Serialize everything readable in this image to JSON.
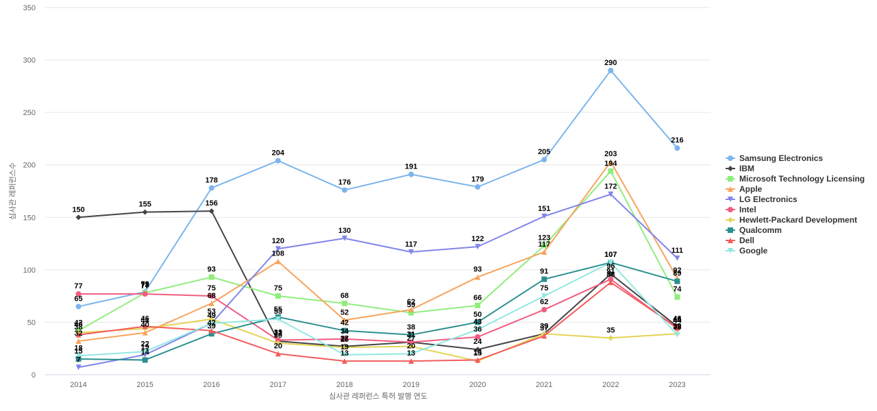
{
  "chart_data": {
    "type": "line",
    "x_label": "심사관 레퍼런스 특허 발행 연도",
    "y_label": "심사관 레퍼런스수",
    "categories": [
      "2014",
      "2015",
      "2016",
      "2017",
      "2018",
      "2019",
      "2020",
      "2021",
      "2022",
      "2023"
    ],
    "ylim": [
      0,
      350
    ],
    "yticks": [
      0,
      50,
      100,
      150,
      200,
      250,
      300,
      350
    ],
    "grid": true,
    "legend": "right",
    "series": [
      {
        "name": "Samsung Electronics",
        "color": "#7cb5ec",
        "marker": "circle",
        "values": [
          65,
          79,
          178,
          204,
          176,
          191,
          179,
          205,
          290,
          216
        ]
      },
      {
        "name": "IBM",
        "color": "#434348",
        "marker": "diamond",
        "values": [
          150,
          155,
          156,
          32,
          27,
          31,
          24,
          39,
          96,
          46
        ]
      },
      {
        "name": "Microsoft Technology Licensing",
        "color": "#90ed7d",
        "marker": "square",
        "values": [
          42,
          78,
          93,
          75,
          68,
          59,
          66,
          123,
          194,
          74
        ]
      },
      {
        "name": "Apple",
        "color": "#f7a35c",
        "marker": "triangle",
        "values": [
          32,
          40,
          68,
          108,
          52,
          62,
          93,
          117,
          203,
          92
        ]
      },
      {
        "name": "LG Electronics",
        "color": "#8085e9",
        "marker": "triangle-down",
        "values": [
          7,
          19,
          49,
          120,
          130,
          117,
          122,
          151,
          172,
          111
        ]
      },
      {
        "name": "Intel",
        "color": "#f15c80",
        "marker": "circle",
        "values": [
          77,
          77,
          75,
          33,
          34,
          31,
          36,
          62,
          91,
          44
        ]
      },
      {
        "name": "Hewlett-Packard Development",
        "color": "#e4d354",
        "marker": "diamond",
        "values": [
          40,
          44,
          53,
          30,
          26,
          27,
          13,
          39,
          35,
          39
        ]
      },
      {
        "name": "Qualcomm",
        "color": "#2b908f",
        "marker": "square",
        "values": [
          15,
          14,
          39,
          55,
          42,
          38,
          50,
          91,
          107,
          89
        ]
      },
      {
        "name": "Dell",
        "color": "#f45b5b",
        "marker": "triangle",
        "values": [
          38,
          46,
          42,
          20,
          13,
          13,
          14,
          37,
          88,
          45
        ]
      },
      {
        "name": "Google",
        "color": "#91e8e1",
        "marker": "triangle-down",
        "values": [
          18,
          22,
          49,
          53,
          19,
          20,
          43,
          75,
          107,
          38
        ]
      }
    ]
  }
}
